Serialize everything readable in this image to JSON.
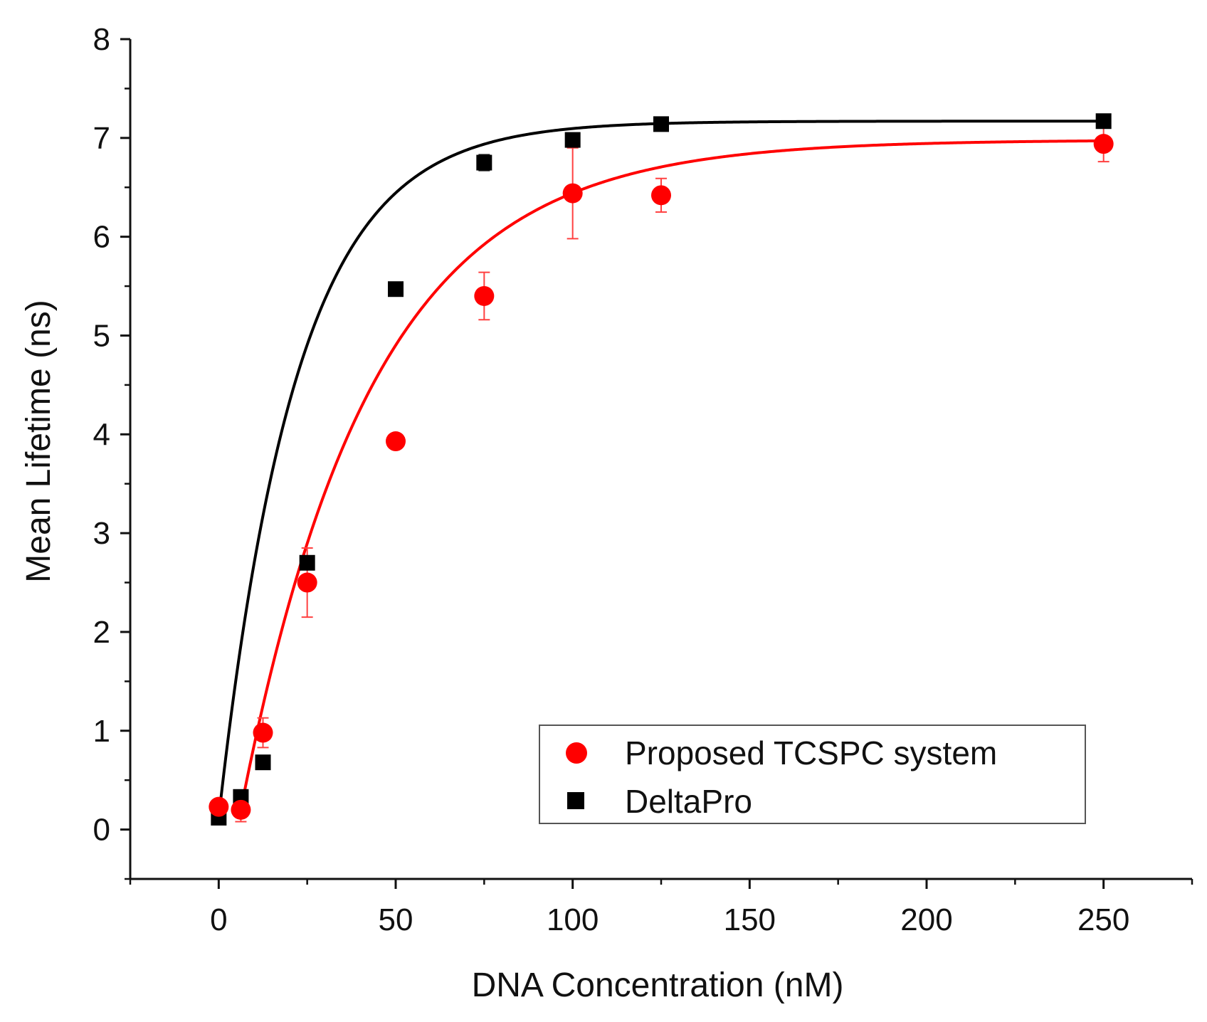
{
  "chart_data": {
    "type": "scatter",
    "title": "",
    "xlabel": "DNA Concentration (nM)",
    "ylabel": "Mean Lifetime (ns)",
    "xlim": [
      -25,
      275
    ],
    "ylim": [
      -0.5,
      8
    ],
    "xticks": [
      0,
      50,
      100,
      150,
      200,
      250
    ],
    "yticks": [
      0,
      1,
      2,
      3,
      4,
      5,
      6,
      7,
      8
    ],
    "xtick_labels": [
      "0",
      "50",
      "100",
      "150",
      "200",
      "250"
    ],
    "ytick_labels": [
      "0",
      "1",
      "2",
      "3",
      "4",
      "5",
      "6",
      "7",
      "8"
    ],
    "grid": false,
    "legend_position": "bottom-right",
    "series": [
      {
        "name": "Proposed TCSPC system",
        "marker": "circle",
        "color": "#ff0000",
        "x": [
          0,
          6.25,
          12.5,
          25,
          50,
          75,
          100,
          125,
          250
        ],
        "y": [
          0.23,
          0.2,
          0.98,
          2.5,
          3.93,
          5.4,
          6.44,
          6.42,
          6.94
        ],
        "yerr": [
          0.06,
          0.12,
          0.15,
          0.35,
          0.04,
          0.24,
          0.46,
          0.17,
          0.18
        ],
        "fit": {
          "model": "y = y0 + A*(1 - exp(-(x - x0)/t))",
          "y0": 0.2,
          "A": 6.78,
          "x0": 6.25,
          "t": 37
        }
      },
      {
        "name": "DeltaPro",
        "marker": "square",
        "color": "#000000",
        "x": [
          0,
          6.25,
          12.5,
          25,
          50,
          75,
          100,
          125,
          250
        ],
        "y": [
          0.12,
          0.33,
          0.68,
          2.7,
          5.47,
          6.75,
          6.98,
          7.14,
          7.17
        ],
        "yerr": [
          0.03,
          0.04,
          0.05,
          0.05,
          0.05,
          0.08,
          0.05,
          0.05,
          0.03
        ],
        "fit": {
          "model": "y = y0 + A*(1 - exp(-x/t))",
          "y0": 0.12,
          "A": 7.05,
          "t": 22
        }
      }
    ]
  }
}
